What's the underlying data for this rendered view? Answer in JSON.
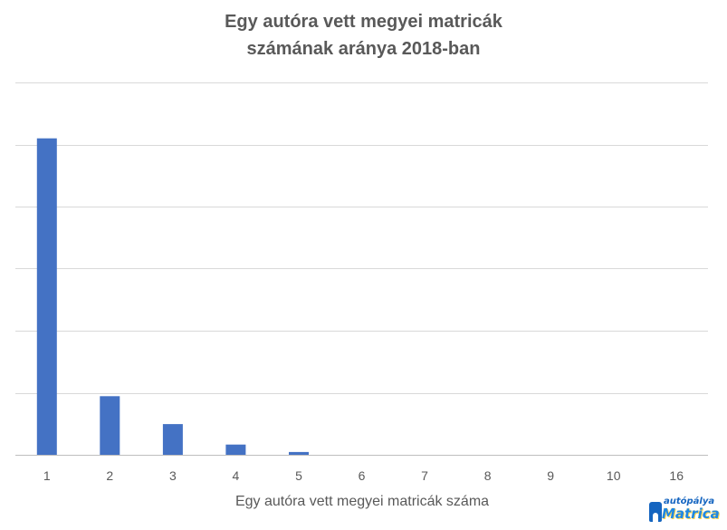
{
  "chart_data": {
    "type": "bar",
    "title": [
      "Egy autóra vett megyei matricák",
      "számának aránya 2018-ban"
    ],
    "xlabel": "Egy autóra vett megyei matricák száma",
    "ylabel": "",
    "categories": [
      "1",
      "2",
      "3",
      "4",
      "5",
      "6",
      "7",
      "8",
      "9",
      "10",
      "16"
    ],
    "values": [
      0.68,
      0.126,
      0.066,
      0.022,
      0.006,
      0,
      0,
      0,
      0,
      0,
      0
    ],
    "ylim": [
      0,
      0.8
    ],
    "y_gridlines": 6,
    "y_tick_labels_shown": false,
    "grid": true,
    "legend": "none",
    "colors": {
      "bar": "#4472c4",
      "grid": "#d9d9d9",
      "axis": "#bfbfbf",
      "title": "#595959",
      "text": "#595959"
    }
  },
  "logo": {
    "top_word": "autópálya",
    "main_word": "Matrica",
    "color": "#1565c0"
  }
}
